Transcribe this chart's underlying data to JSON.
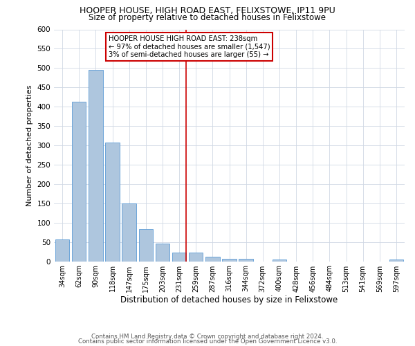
{
  "title": "HOOPER HOUSE, HIGH ROAD EAST, FELIXSTOWE, IP11 9PU",
  "subtitle": "Size of property relative to detached houses in Felixstowe",
  "xlabel": "Distribution of detached houses by size in Felixstowe",
  "ylabel": "Number of detached properties",
  "bar_labels": [
    "34sqm",
    "62sqm",
    "90sqm",
    "118sqm",
    "147sqm",
    "175sqm",
    "203sqm",
    "231sqm",
    "259sqm",
    "287sqm",
    "316sqm",
    "344sqm",
    "372sqm",
    "400sqm",
    "428sqm",
    "456sqm",
    "484sqm",
    "513sqm",
    "541sqm",
    "569sqm",
    "597sqm"
  ],
  "bar_values": [
    57,
    412,
    495,
    308,
    150,
    84,
    45,
    22,
    22,
    11,
    7,
    6,
    0,
    4,
    0,
    0,
    0,
    0,
    0,
    0,
    4
  ],
  "bar_color": "#aec6de",
  "bar_edge_color": "#5b9bd5",
  "vline_x_idx": 7,
  "vline_color": "#cc0000",
  "annotation_text": "HOOPER HOUSE HIGH ROAD EAST: 238sqm\n← 97% of detached houses are smaller (1,547)\n3% of semi-detached houses are larger (55) →",
  "annotation_box_edgecolor": "#cc0000",
  "ylim": [
    0,
    600
  ],
  "yticks": [
    0,
    50,
    100,
    150,
    200,
    250,
    300,
    350,
    400,
    450,
    500,
    550,
    600
  ],
  "footer1": "Contains HM Land Registry data © Crown copyright and database right 2024.",
  "footer2": "Contains public sector information licensed under the Open Government Licence v3.0.",
  "bg_color": "#ffffff",
  "grid_color": "#d0d8e4"
}
